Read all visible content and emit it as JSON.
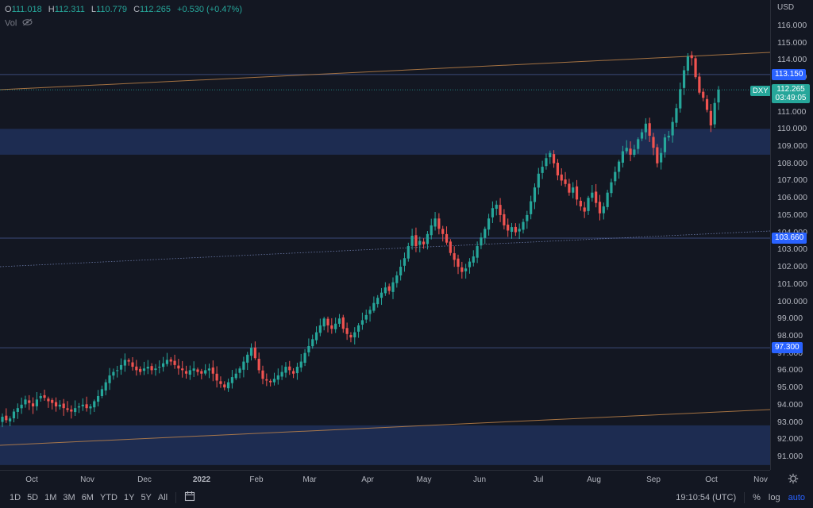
{
  "legend": {
    "o_key": "O",
    "o_val": "111.018",
    "h_key": "H",
    "h_val": "112.311",
    "l_key": "L",
    "l_val": "110.779",
    "c_key": "C",
    "c_val": "112.265",
    "change": "+0.530 (+0.47%)",
    "vol_label": "Vol"
  },
  "price_scale": {
    "currency": "USD",
    "ticks": [
      "116.000",
      "115.000",
      "114.000",
      "113.000",
      "112.000",
      "111.000",
      "110.000",
      "109.000",
      "108.000",
      "107.000",
      "106.000",
      "105.000",
      "104.000",
      "103.000",
      "102.000",
      "101.000",
      "100.000",
      "99.000",
      "98.000",
      "97.000",
      "96.000",
      "95.000",
      "94.000",
      "93.000",
      "92.000",
      "91.000"
    ],
    "badges": [
      "113.150",
      "103.660",
      "97.300"
    ],
    "last_price": "112.265",
    "countdown": "03:49:05",
    "symbol": "DXY"
  },
  "time_scale": {
    "labels": [
      "Oct",
      "Nov",
      "Dec",
      "2022",
      "Feb",
      "Mar",
      "Apr",
      "May",
      "Jun",
      "Jul",
      "Aug",
      "Sep",
      "Oct",
      "Nov"
    ]
  },
  "toolbar": {
    "timeframes": [
      "1D",
      "5D",
      "1M",
      "3M",
      "6M",
      "YTD",
      "1Y",
      "5Y",
      "All"
    ],
    "clock": "19:10:54 (UTC)",
    "percent": "%",
    "log": "log",
    "auto": "auto"
  },
  "colors": {
    "up": "#26a69a",
    "down": "#ef5350",
    "zone": "#1f2f57",
    "trend": "#c9894a",
    "level": "#2962ff",
    "background": "#131722"
  },
  "chart_data": {
    "type": "candlestick",
    "symbol": "DXY",
    "currency": "USD",
    "ylim": [
      90.5,
      116.8
    ],
    "price_levels": [
      113.15,
      103.66,
      97.3
    ],
    "zones": [
      [
        108.5,
        110.0
      ],
      [
        90.5,
        92.8
      ]
    ],
    "closes": [
      93.3,
      93.1,
      93.2,
      93.6,
      93.8,
      94.0,
      94.3,
      94.1,
      93.9,
      94.3,
      94.5,
      94.4,
      94.2,
      94.1,
      93.9,
      94.0,
      93.8,
      93.7,
      93.6,
      93.8,
      93.9,
      94.0,
      93.8,
      93.9,
      94.2,
      94.5,
      94.9,
      95.3,
      95.7,
      95.9,
      96.0,
      96.3,
      96.6,
      96.5,
      96.2,
      96.0,
      95.9,
      96.1,
      96.2,
      96.0,
      96.1,
      96.2,
      96.4,
      96.6,
      96.5,
      96.3,
      96.1,
      96.0,
      95.8,
      96.0,
      96.1,
      95.9,
      95.8,
      96.0,
      96.1,
      95.8,
      95.4,
      95.2,
      95.0,
      95.3,
      95.6,
      95.8,
      96.1,
      96.5,
      96.9,
      97.3,
      96.7,
      96.0,
      95.5,
      95.4,
      95.3,
      95.5,
      95.7,
      95.9,
      96.2,
      96.0,
      95.8,
      96.2,
      96.5,
      97.0,
      97.4,
      97.8,
      98.2,
      98.6,
      99.0,
      98.6,
      98.4,
      98.7,
      99.0,
      98.4,
      98.1,
      97.9,
      98.2,
      98.6,
      98.9,
      99.2,
      99.5,
      99.9,
      100.2,
      100.5,
      100.8,
      100.6,
      101.1,
      101.5,
      102.0,
      102.5,
      103.2,
      103.8,
      103.2,
      103.5,
      103.3,
      103.9,
      104.4,
      104.8,
      104.2,
      103.9,
      103.4,
      102.8,
      102.4,
      102.0,
      101.7,
      101.9,
      102.3,
      102.6,
      103.2,
      103.7,
      104.2,
      104.8,
      105.4,
      105.6,
      105.0,
      104.4,
      104.1,
      104.3,
      104.0,
      104.2,
      104.6,
      105.0,
      105.8,
      106.6,
      107.4,
      107.8,
      108.3,
      108.6,
      108.0,
      107.3,
      107.0,
      106.8,
      106.3,
      106.6,
      105.9,
      105.5,
      105.2,
      106.0,
      106.3,
      105.7,
      105.1,
      105.5,
      106.3,
      106.9,
      107.5,
      108.1,
      108.7,
      108.9,
      108.5,
      108.8,
      109.4,
      109.8,
      110.3,
      109.6,
      108.9,
      108.0,
      108.6,
      109.5,
      109.6,
      110.4,
      111.2,
      112.3,
      113.4,
      114.2,
      114.1,
      113.0,
      112.1,
      111.8,
      111.1,
      110.2,
      111.5,
      112.265
    ]
  }
}
